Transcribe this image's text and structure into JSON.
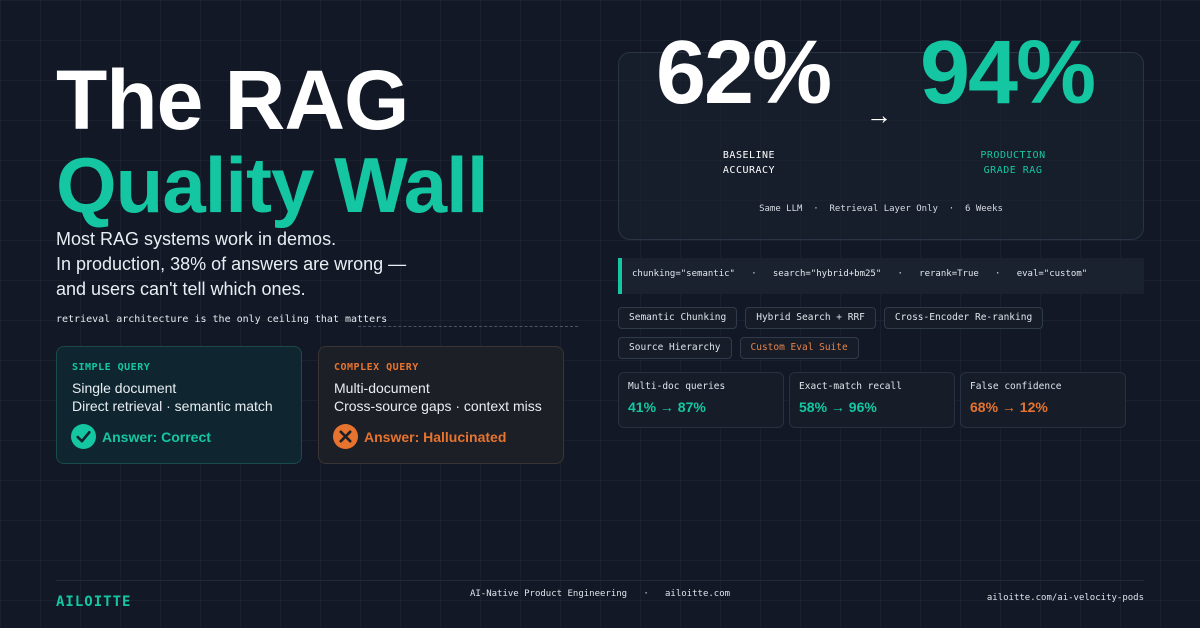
{
  "hero": {
    "title_line1": "The RAG",
    "title_line2": "Quality Wall",
    "subtitle_lines": [
      "Most RAG systems work in demos.",
      "In production, 38% of answers are wrong —",
      "and users can't tell which ones."
    ],
    "tagline": "retrieval architecture is the only ceiling that matters"
  },
  "cards": {
    "simple": {
      "title": "SIMPLE QUERY",
      "line1": "Single document",
      "line2": "Direct retrieval · semantic match",
      "answer": "Answer: Correct",
      "icon": "check-circle-icon",
      "color": "#14c7a2"
    },
    "complex": {
      "title": "COMPLEX QUERY",
      "line1": "Multi-document",
      "line2": "Cross-source gaps · context miss",
      "answer": "Answer: Hallucinated",
      "icon": "x-circle-icon",
      "color": "#e7742e"
    }
  },
  "stats": {
    "baseline": "62%",
    "production": "94%",
    "arrow": "→",
    "baseline_label": [
      "BASELINE",
      "ACCURACY"
    ],
    "production_label": [
      "PRODUCTION",
      "GRADE RAG"
    ],
    "footnote": "Same LLM  ·  Retrieval Layer Only  ·  6 Weeks"
  },
  "config_line": "chunking=\"semantic\"   ·   search=\"hybrid+bm25\"   ·   rerank=True   ·   eval=\"custom\"",
  "chips": [
    "Semantic Chunking",
    "Hybrid Search + RRF",
    "Cross-Encoder Re-ranking",
    "Source Hierarchy",
    "Custom Eval Suite"
  ],
  "metrics": [
    {
      "label": "Multi-doc queries",
      "value": "41% → 87%",
      "color": "#14c7a2"
    },
    {
      "label": "Exact-match recall",
      "value": "58% → 96%",
      "color": "#14c7a2"
    },
    {
      "label": "False confidence",
      "value": "68% → 12%",
      "color": "#e7742e"
    }
  ],
  "footer": {
    "brand": "AILOITTE",
    "center": "AI-Native Product Engineering   ·   ailoitte.com",
    "right": "ailoitte.com/ai-velocity-pods"
  },
  "colors": {
    "accent": "#14c7a2",
    "warning": "#e7742e",
    "background": "#121826"
  }
}
